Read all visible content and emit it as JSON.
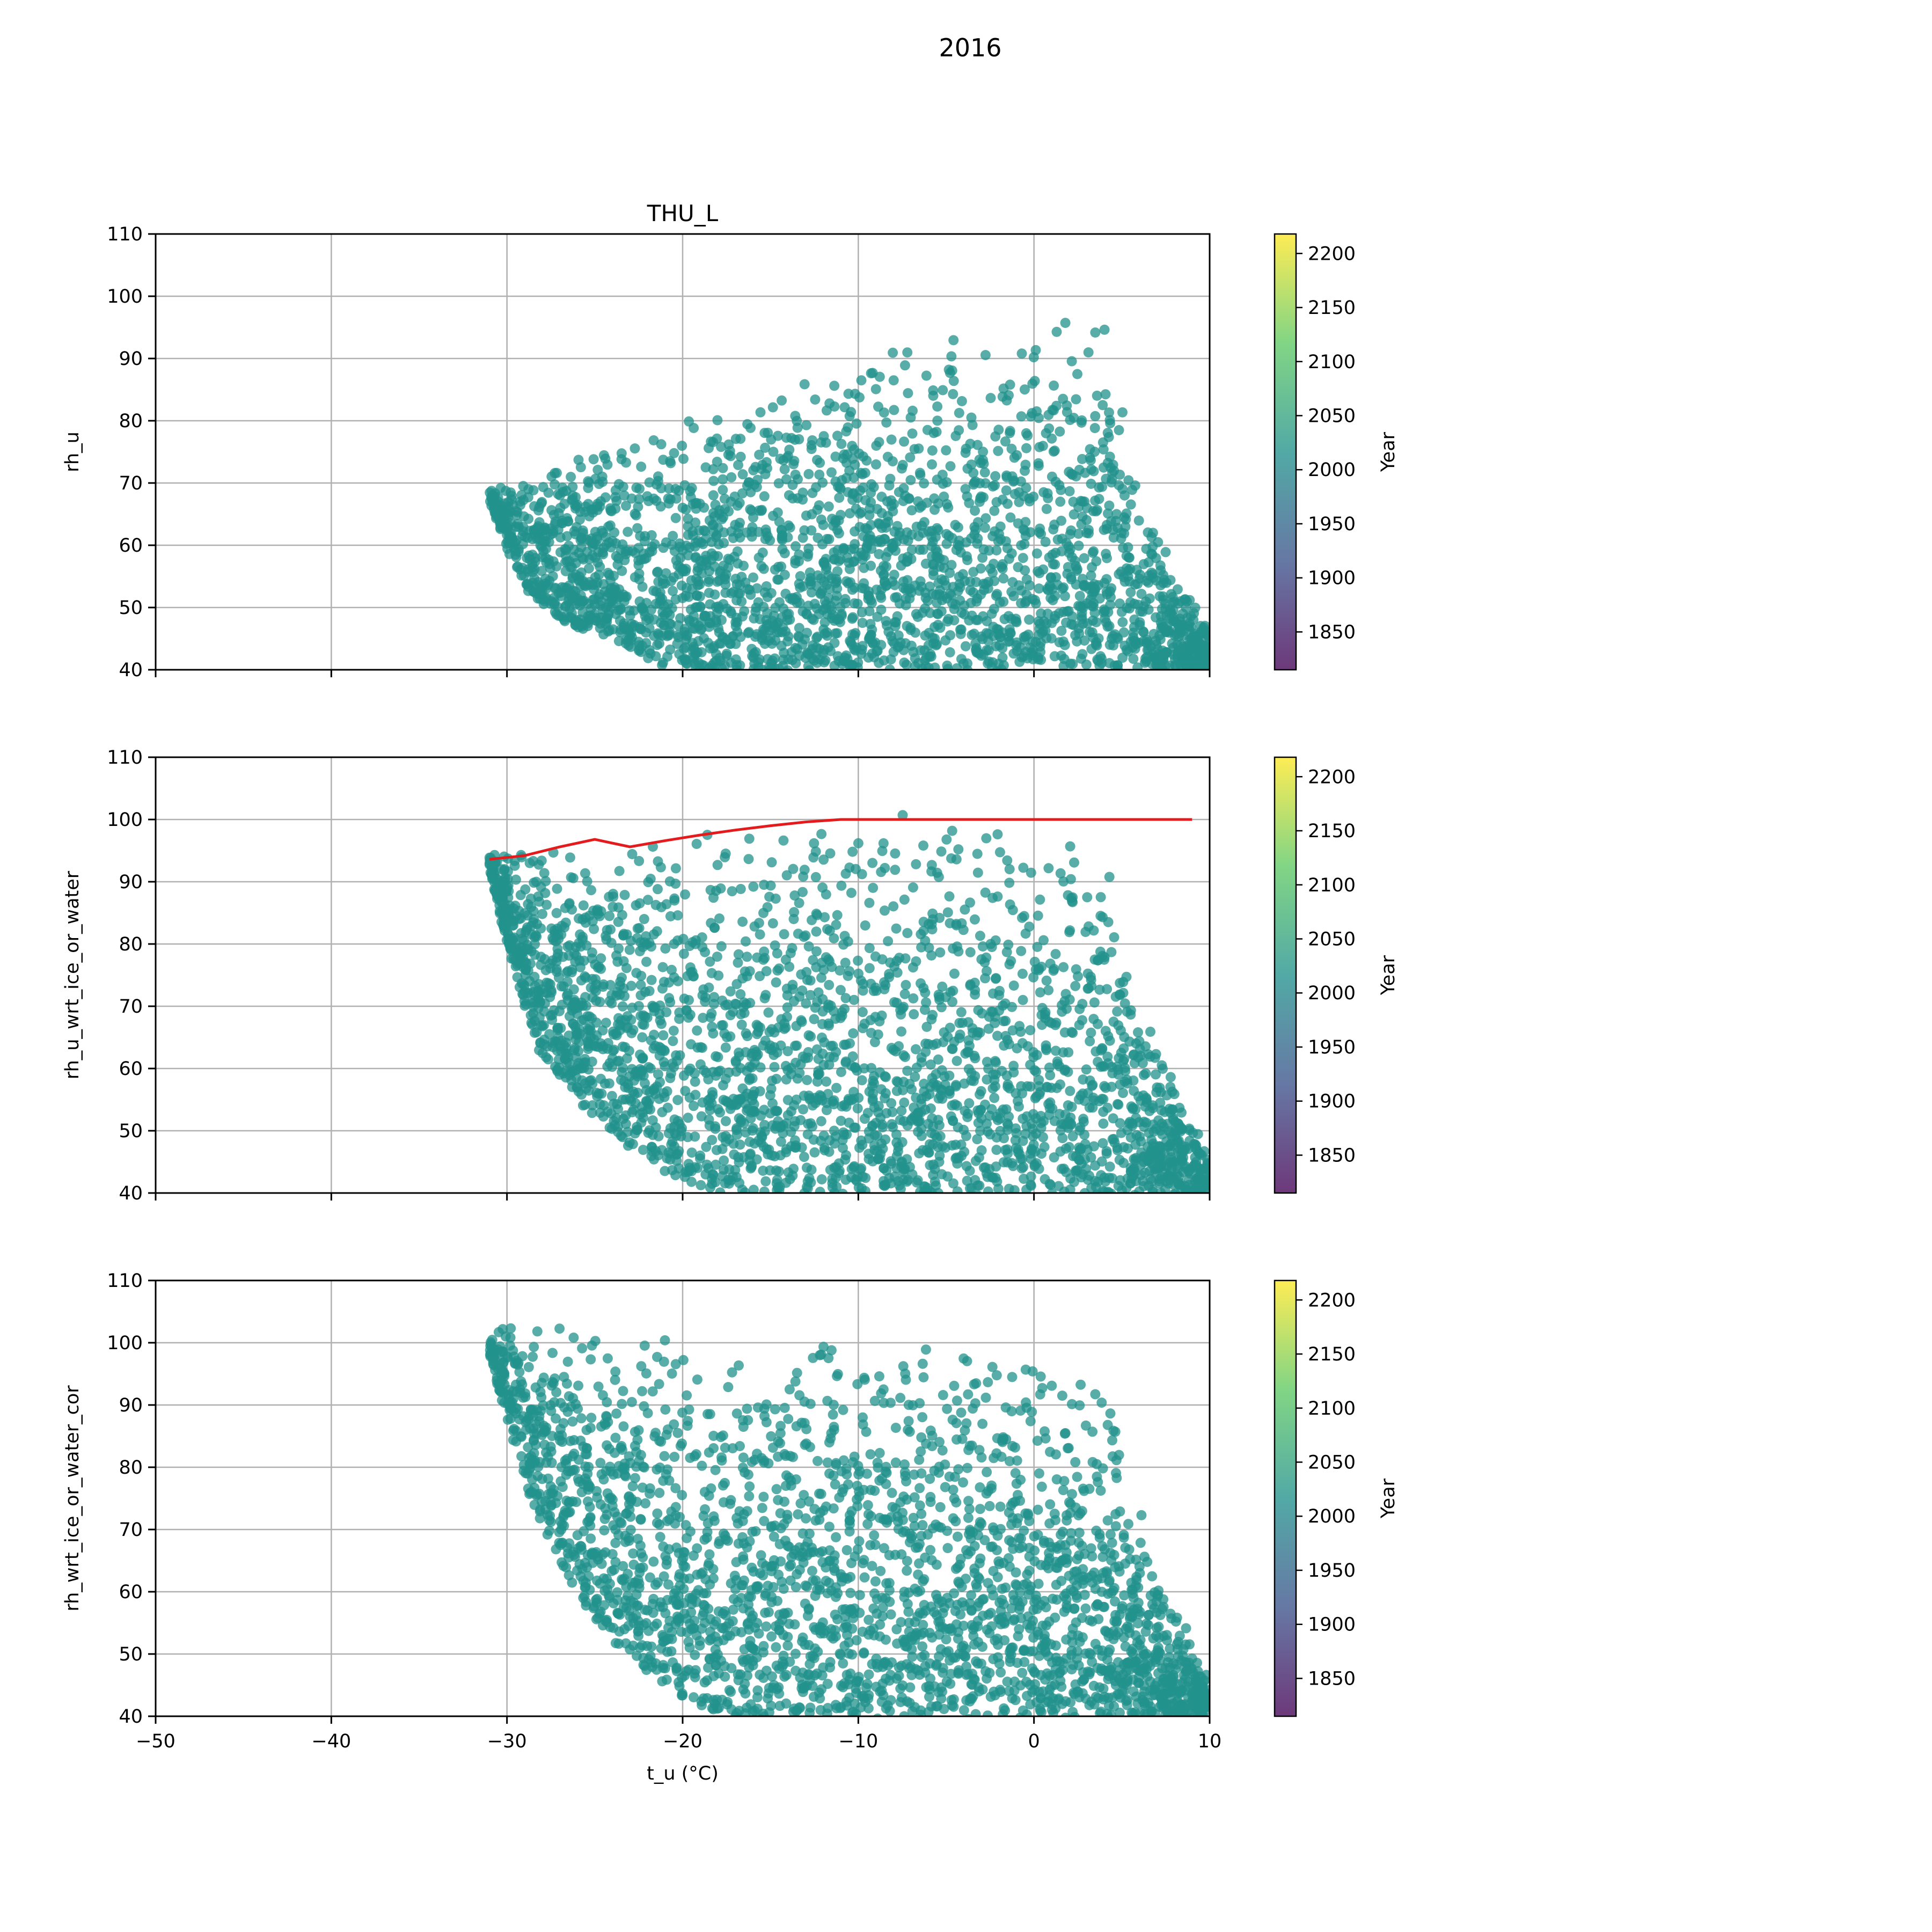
{
  "figure": {
    "suptitle": "2016"
  },
  "colors": {
    "points": "#21918c",
    "fit_line": "#e41a1c",
    "grid": "#b0b0b0",
    "axis": "#000000",
    "colorbar": [
      "#440154",
      "#3b528b",
      "#21918c",
      "#5ec962",
      "#fde725"
    ]
  },
  "colorbar": {
    "label": "Year",
    "range": [
      1815,
      2218
    ],
    "ticks": [
      "1850",
      "1900",
      "1950",
      "2000",
      "2050",
      "2100",
      "2150",
      "2200"
    ]
  },
  "chart_data": [
    {
      "type": "scatter",
      "title": "THU_L",
      "ylabel": "rh_u",
      "xlabel": "",
      "xlim": [
        -50,
        10
      ],
      "ylim": [
        40,
        110
      ],
      "grid": true,
      "x_ticks": [
        "−50",
        "−40",
        "−30",
        "−20",
        "−10",
        "0",
        "10"
      ],
      "y_ticks": [
        "40",
        "50",
        "60",
        "70",
        "80",
        "90",
        "100",
        "110"
      ],
      "show_x_tick_labels": false,
      "point_cloud": {
        "x_range": [
          -31,
          10
        ],
        "upper_edge": [
          [
            -31,
            69
          ],
          [
            -28,
            73
          ],
          [
            -25,
            76
          ],
          [
            -20,
            81
          ],
          [
            -15,
            86
          ],
          [
            -10,
            90
          ],
          [
            -5,
            94
          ],
          [
            -1,
            96
          ],
          [
            1,
            98
          ],
          [
            4,
            96
          ],
          [
            4.5,
            90
          ],
          [
            5.5,
            80
          ],
          [
            6,
            73
          ],
          [
            7,
            65
          ],
          [
            8,
            58
          ],
          [
            9,
            52
          ],
          [
            10,
            46
          ]
        ],
        "lower_edge": [
          [
            -31,
            67
          ],
          [
            -30,
            60
          ],
          [
            -29,
            53
          ],
          [
            -27,
            48
          ],
          [
            -24,
            45
          ],
          [
            -22,
            42
          ],
          [
            -20,
            40
          ],
          [
            10,
            40
          ]
        ],
        "year_value": 2016
      }
    },
    {
      "type": "scatter",
      "title": "",
      "ylabel": "rh_u_wrt_ice_or_water",
      "xlabel": "",
      "xlim": [
        -50,
        10
      ],
      "ylim": [
        40,
        110
      ],
      "grid": true,
      "x_ticks": [
        "−50",
        "−40",
        "−30",
        "−20",
        "−10",
        "0",
        "10"
      ],
      "y_ticks": [
        "40",
        "50",
        "60",
        "70",
        "80",
        "90",
        "100",
        "110"
      ],
      "show_x_tick_labels": false,
      "point_cloud": {
        "x_range": [
          -31,
          10
        ],
        "upper_edge": [
          [
            -31,
            94
          ],
          [
            -28,
            96
          ],
          [
            -25,
            97
          ],
          [
            -20,
            98
          ],
          [
            -15,
            99
          ],
          [
            -10,
            101
          ],
          [
            -5,
            100
          ],
          [
            0,
            98
          ],
          [
            2,
            98
          ],
          [
            4,
            96
          ],
          [
            4.5,
            90
          ],
          [
            5.5,
            80
          ],
          [
            6,
            73
          ],
          [
            7,
            65
          ],
          [
            8,
            58
          ],
          [
            9,
            52
          ],
          [
            10,
            46
          ]
        ],
        "lower_edge": [
          [
            -31,
            92
          ],
          [
            -30,
            80
          ],
          [
            -29,
            70
          ],
          [
            -28,
            62
          ],
          [
            -26,
            55
          ],
          [
            -24,
            50
          ],
          [
            -22,
            45
          ],
          [
            -20,
            42
          ],
          [
            -18,
            40
          ],
          [
            10,
            40
          ]
        ],
        "year_value": 2016
      },
      "fit_line": {
        "x": [
          -31,
          -29,
          -27,
          -25,
          -23,
          -21,
          -19,
          -17,
          -15,
          -13,
          -11,
          -9,
          -7,
          -5,
          -3,
          -1,
          1,
          3,
          5,
          7,
          9
        ],
        "y": [
          93.6,
          94.2,
          95.6,
          96.8,
          95.6,
          96.6,
          97.5,
          98.3,
          99.0,
          99.6,
          100,
          100,
          100,
          100,
          100,
          100,
          100,
          100,
          100,
          100,
          100
        ]
      }
    },
    {
      "type": "scatter",
      "title": "",
      "ylabel": "rh_wrt_ice_or_water_cor",
      "xlabel": "t_u (°C)",
      "xlim": [
        -50,
        10
      ],
      "ylim": [
        40,
        110
      ],
      "grid": true,
      "x_ticks": [
        "−50",
        "−40",
        "−30",
        "−20",
        "−10",
        "0",
        "10"
      ],
      "y_ticks": [
        "40",
        "50",
        "60",
        "70",
        "80",
        "90",
        "100",
        "110"
      ],
      "show_x_tick_labels": true,
      "point_cloud": {
        "x_range": [
          -31,
          10
        ],
        "upper_edge": [
          [
            -31,
            101
          ],
          [
            -29,
            104
          ],
          [
            -25,
            102
          ],
          [
            -20,
            102
          ],
          [
            -15,
            101
          ],
          [
            -10,
            101
          ],
          [
            -5,
            100
          ],
          [
            0,
            98
          ],
          [
            2,
            98
          ],
          [
            4,
            96
          ],
          [
            4.5,
            90
          ],
          [
            5.5,
            80
          ],
          [
            6,
            73
          ],
          [
            7,
            65
          ],
          [
            8,
            58
          ],
          [
            9,
            52
          ],
          [
            10,
            46
          ]
        ],
        "lower_edge": [
          [
            -31,
            98
          ],
          [
            -30,
            88
          ],
          [
            -29,
            78
          ],
          [
            -28,
            70
          ],
          [
            -26,
            60
          ],
          [
            -24,
            52
          ],
          [
            -22,
            47
          ],
          [
            -20,
            43
          ],
          [
            -18,
            40
          ],
          [
            10,
            40
          ]
        ],
        "year_value": 2016
      }
    }
  ]
}
